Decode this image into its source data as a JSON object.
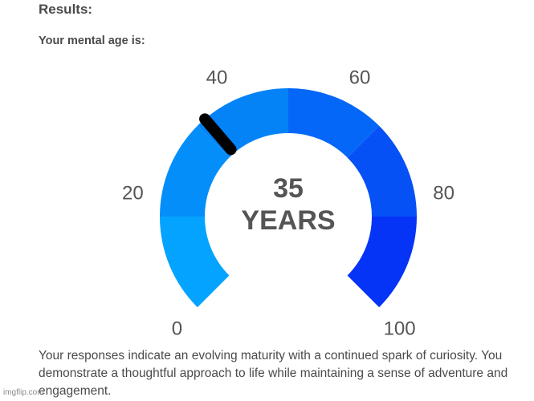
{
  "results": {
    "heading": "Results:",
    "subheading": "Your mental age is:"
  },
  "gauge": {
    "value": 35,
    "min": 0,
    "max": 100,
    "center_number": "35",
    "center_unit": "YEARS",
    "tick_labels": [
      "0",
      "20",
      "40",
      "60",
      "80",
      "100"
    ],
    "segment_colors": [
      "#03a3ff",
      "#048ef9",
      "#0483f7",
      "#0567f7",
      "#0651f6",
      "#0534f6"
    ],
    "needle_color": "#000000"
  },
  "description": "Your responses indicate an evolving maturity with a continued spark of curiosity. You demonstrate a thoughtful approach to life while maintaining a sense of adventure and engagement.",
  "watermark": "imgflip.com"
}
